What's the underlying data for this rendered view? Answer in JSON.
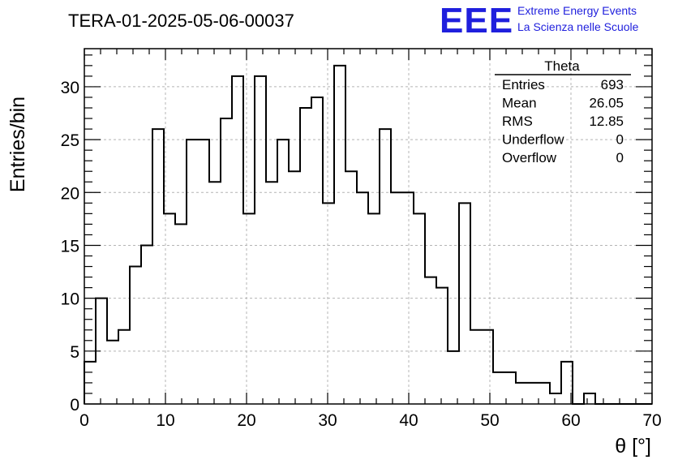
{
  "chart_data": {
    "type": "bar",
    "title": "TERA-01-2025-05-06-00037",
    "xlabel": "θ [°]",
    "ylabel": "Entries/bin",
    "xlim": [
      0,
      70
    ],
    "ylim": [
      0,
      33.6
    ],
    "grid": true,
    "x_ticks": [
      "0",
      "10",
      "20",
      "30",
      "40",
      "50",
      "60",
      "70"
    ],
    "y_ticks": [
      "0",
      "5",
      "10",
      "15",
      "20",
      "25",
      "30"
    ],
    "bin_width": 1.4,
    "bin_start": 0,
    "values": [
      4,
      10,
      6,
      7,
      13,
      15,
      26,
      18,
      17,
      25,
      25,
      21,
      27,
      31,
      18,
      31,
      21,
      25,
      22,
      28,
      29,
      19,
      32,
      22,
      20,
      18,
      26,
      20,
      20,
      18,
      12,
      11,
      5,
      19,
      7,
      7,
      3,
      3,
      2,
      2,
      2,
      1,
      4,
      0,
      1,
      0,
      0,
      0,
      0,
      0
    ],
    "stats_box": {
      "name": "Theta",
      "rows": [
        {
          "label": "Entries",
          "value": "693"
        },
        {
          "label": "Mean",
          "value": "26.05"
        },
        {
          "label": "RMS",
          "value": "12.85"
        },
        {
          "label": "Underflow",
          "value": "0"
        },
        {
          "label": "Overflow",
          "value": "0"
        }
      ]
    },
    "logo": {
      "mark": "EEE",
      "line1": "Extreme Energy Events",
      "line2": "La Scienza nelle Scuole",
      "color": "#1f1fdd"
    }
  }
}
